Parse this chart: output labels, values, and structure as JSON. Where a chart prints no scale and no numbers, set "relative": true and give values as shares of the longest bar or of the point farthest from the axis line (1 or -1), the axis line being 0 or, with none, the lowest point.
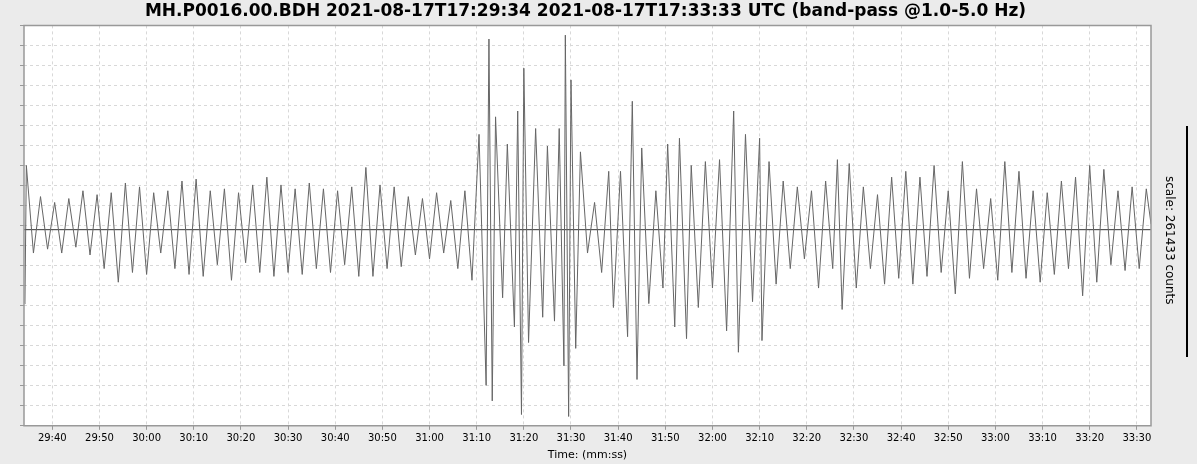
{
  "chart_data": {
    "type": "line",
    "title": "MH.P0016.00.BDH 2021-08-17T17:29:34 2021-08-17T17:33:33 UTC (band-pass @1.0-5.0 Hz)",
    "xlabel": "Time: (mm:ss)",
    "y2label": "scale: 261433 counts",
    "relative": true,
    "grid": true,
    "xlim": [
      1774,
      2013
    ],
    "xticks": [
      {
        "value": 1780,
        "label": "29:40"
      },
      {
        "value": 1790,
        "label": "29:50"
      },
      {
        "value": 1800,
        "label": "30:00"
      },
      {
        "value": 1810,
        "label": "30:10"
      },
      {
        "value": 1820,
        "label": "30:20"
      },
      {
        "value": 1830,
        "label": "30:30"
      },
      {
        "value": 1840,
        "label": "30:40"
      },
      {
        "value": 1850,
        "label": "30:50"
      },
      {
        "value": 1860,
        "label": "31:00"
      },
      {
        "value": 1870,
        "label": "31:10"
      },
      {
        "value": 1880,
        "label": "31:20"
      },
      {
        "value": 1890,
        "label": "31:30"
      },
      {
        "value": 1900,
        "label": "31:40"
      },
      {
        "value": 1910,
        "label": "31:50"
      },
      {
        "value": 1920,
        "label": "32:00"
      },
      {
        "value": 1930,
        "label": "32:10"
      },
      {
        "value": 1940,
        "label": "32:20"
      },
      {
        "value": 1950,
        "label": "32:30"
      },
      {
        "value": 1960,
        "label": "32:40"
      },
      {
        "value": 1970,
        "label": "32:50"
      },
      {
        "value": 1980,
        "label": "33:00"
      },
      {
        "value": 1990,
        "label": "33:10"
      },
      {
        "value": 2000,
        "label": "33:20"
      },
      {
        "value": 2010,
        "label": "33:30"
      }
    ],
    "x": [
      1774.2,
      1774.5,
      1776,
      1777.5,
      1779,
      1780.5,
      1782,
      1783.5,
      1785,
      1786.5,
      1788,
      1789.5,
      1791,
      1792.5,
      1794,
      1795.5,
      1797,
      1798.5,
      1800,
      1801.5,
      1803,
      1804.5,
      1806,
      1807.5,
      1809,
      1810.5,
      1812,
      1813.5,
      1815,
      1816.5,
      1818,
      1819.5,
      1821,
      1822.5,
      1824,
      1825.5,
      1827,
      1828.5,
      1830,
      1831.5,
      1833,
      1834.5,
      1836,
      1837.5,
      1839,
      1840.5,
      1842,
      1843.5,
      1845,
      1846.5,
      1848,
      1849.5,
      1851,
      1852.5,
      1854,
      1855.5,
      1857,
      1858.5,
      1860,
      1861.5,
      1863,
      1864.5,
      1866,
      1867.5,
      1869,
      1870.5,
      1872,
      1872.6,
      1873.3,
      1874,
      1875.5,
      1876.5,
      1878,
      1878.7,
      1879.5,
      1880,
      1881,
      1882.5,
      1884,
      1885,
      1886.5,
      1887.5,
      1888.5,
      1888.8,
      1889.5,
      1890,
      1891,
      1892,
      1893.5,
      1895,
      1896.5,
      1898,
      1899,
      1900.5,
      1902,
      1903,
      1904,
      1905,
      1906.5,
      1908,
      1909.5,
      1910.5,
      1912,
      1913,
      1914.5,
      1915.5,
      1917,
      1918.5,
      1920,
      1921.5,
      1923,
      1924.5,
      1925.5,
      1927,
      1928.5,
      1930,
      1930.5,
      1932,
      1933.5,
      1935,
      1936.5,
      1938,
      1939.5,
      1941,
      1942.5,
      1944,
      1945.5,
      1946.5,
      1947.5,
      1949,
      1950.5,
      1952,
      1953.5,
      1955,
      1956.5,
      1958,
      1959.5,
      1961,
      1962.5,
      1964,
      1965.5,
      1967,
      1968.5,
      1970,
      1971.5,
      1973,
      1974.5,
      1976,
      1977.5,
      1979,
      1980.5,
      1982,
      1983.5,
      1985,
      1986.5,
      1988,
      1989.5,
      1991,
      1992.5,
      1994,
      1995.5,
      1997,
      1998.5,
      2000,
      2001.5,
      2003,
      2004.5,
      2006,
      2007.5,
      2009,
      2010.5,
      2012,
      2013
    ],
    "series": [
      {
        "color": "#666666",
        "values": [
          -0.38,
          0.33,
          -0.12,
          0.17,
          -0.1,
          0.14,
          -0.12,
          0.16,
          -0.09,
          0.2,
          -0.13,
          0.18,
          -0.2,
          0.19,
          -0.27,
          0.24,
          -0.22,
          0.22,
          -0.23,
          0.19,
          -0.12,
          0.2,
          -0.2,
          0.25,
          -0.23,
          0.26,
          -0.24,
          0.2,
          -0.18,
          0.21,
          -0.26,
          0.19,
          -0.17,
          0.23,
          -0.22,
          0.27,
          -0.24,
          0.23,
          -0.22,
          0.21,
          -0.23,
          0.24,
          -0.2,
          0.21,
          -0.22,
          0.2,
          -0.18,
          0.22,
          -0.24,
          0.32,
          -0.24,
          0.23,
          -0.2,
          0.22,
          -0.19,
          0.17,
          -0.13,
          0.16,
          -0.15,
          0.19,
          -0.12,
          0.15,
          -0.2,
          0.2,
          -0.26,
          0.49,
          -0.8,
          0.98,
          -0.88,
          0.58,
          -0.35,
          0.44,
          -0.5,
          0.61,
          -0.95,
          0.83,
          -0.58,
          0.52,
          -0.45,
          0.43,
          -0.47,
          0.52,
          -0.7,
          1,
          -0.96,
          0.77,
          -0.61,
          0.4,
          -0.12,
          0.14,
          -0.22,
          0.3,
          -0.4,
          0.3,
          -0.55,
          0.66,
          -0.77,
          0.42,
          -0.38,
          0.2,
          -0.3,
          0.44,
          -0.5,
          0.47,
          -0.56,
          0.33,
          -0.4,
          0.35,
          -0.3,
          0.36,
          -0.52,
          0.61,
          -0.63,
          0.49,
          -0.37,
          0.47,
          -0.57,
          0.35,
          -0.28,
          0.25,
          -0.2,
          0.22,
          -0.15,
          0.2,
          -0.3,
          0.25,
          -0.2,
          0.36,
          -0.41,
          0.34,
          -0.3,
          0.22,
          -0.2,
          0.18,
          -0.28,
          0.27,
          -0.25,
          0.3,
          -0.28,
          0.27,
          -0.24,
          0.33,
          -0.22,
          0.2,
          -0.33,
          0.35,
          -0.25,
          0.21,
          -0.2,
          0.16,
          -0.26,
          0.35,
          -0.22,
          0.3,
          -0.25,
          0.2,
          -0.27,
          0.19,
          -0.23,
          0.25,
          -0.2,
          0.27,
          -0.34,
          0.33,
          -0.27,
          0.31,
          -0.18,
          0.2,
          -0.21,
          0.22,
          -0.2,
          0.21,
          0.03
        ]
      }
    ]
  }
}
